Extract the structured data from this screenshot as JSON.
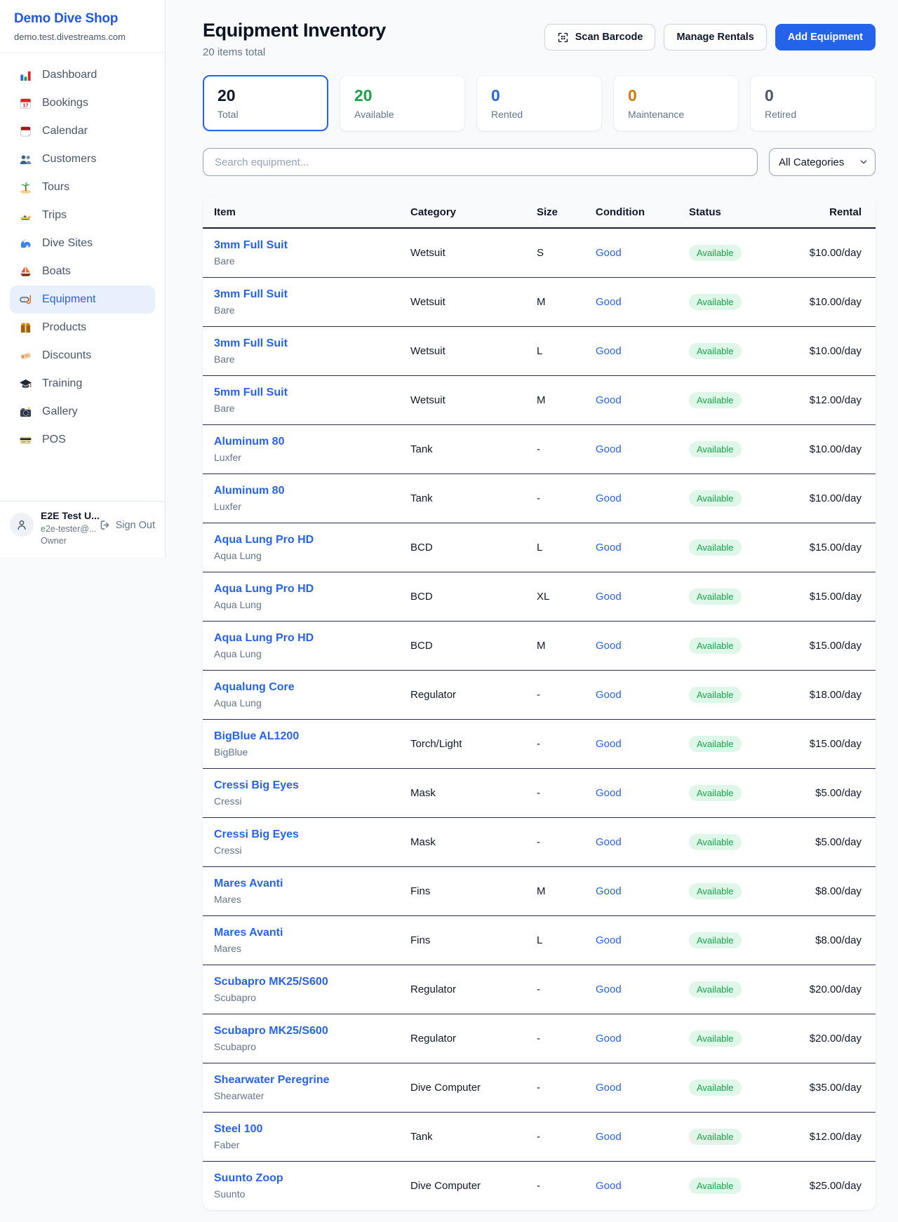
{
  "colors": {
    "accent_blue": "#2563eb",
    "brand_blue": "#2257e7",
    "available_green": "#16a34a",
    "maintenance_orange": "#d97706",
    "retired_gray": "#4b5563",
    "badge_bg": "#def7e8",
    "row_border": "#22304a"
  },
  "sidebar": {
    "brand": {
      "name": "Demo Dive Shop",
      "domain": "demo.test.divestreams.com"
    },
    "items": [
      {
        "label": "Dashboard",
        "icon": "bar-chart",
        "active": false
      },
      {
        "label": "Bookings",
        "icon": "calendar-date",
        "active": false
      },
      {
        "label": "Calendar",
        "icon": "calendar",
        "active": false
      },
      {
        "label": "Customers",
        "icon": "people",
        "active": false
      },
      {
        "label": "Tours",
        "icon": "palm-island",
        "active": false
      },
      {
        "label": "Trips",
        "icon": "speedboat",
        "active": false
      },
      {
        "label": "Dive Sites",
        "icon": "wave",
        "active": false
      },
      {
        "label": "Boats",
        "icon": "sailboat",
        "active": false
      },
      {
        "label": "Equipment",
        "icon": "dive-mask",
        "active": true
      },
      {
        "label": "Products",
        "icon": "package",
        "active": false
      },
      {
        "label": "Discounts",
        "icon": "tag",
        "active": false
      },
      {
        "label": "Training",
        "icon": "grad-cap",
        "active": false
      },
      {
        "label": "Gallery",
        "icon": "camera",
        "active": false
      },
      {
        "label": "POS",
        "icon": "credit-card",
        "active": false
      }
    ],
    "user": {
      "name": "E2E Test U...",
      "email": "e2e-tester@...",
      "role": "Owner",
      "sign_out_label": "Sign Out"
    }
  },
  "header": {
    "title": "Equipment Inventory",
    "subtitle": "20 items total",
    "buttons": {
      "scan": "Scan Barcode",
      "manage": "Manage Rentals",
      "add": "Add Equipment"
    }
  },
  "stats": [
    {
      "value": "20",
      "label": "Total",
      "color": "#0f172a",
      "selected": true
    },
    {
      "value": "20",
      "label": "Available",
      "color": "#16a34a",
      "selected": false
    },
    {
      "value": "0",
      "label": "Rented",
      "color": "#2563eb",
      "selected": false
    },
    {
      "value": "0",
      "label": "Maintenance",
      "color": "#d97706",
      "selected": false
    },
    {
      "value": "0",
      "label": "Retired",
      "color": "#4b5563",
      "selected": false
    }
  ],
  "filters": {
    "search_placeholder": "Search equipment...",
    "category_selected": "All Categories"
  },
  "table": {
    "columns": [
      "Item",
      "Category",
      "Size",
      "Condition",
      "Status",
      "Rental"
    ],
    "rows": [
      {
        "name": "3mm Full Suit",
        "brand": "Bare",
        "category": "Wetsuit",
        "size": "S",
        "condition": "Good",
        "status": "Available",
        "rental": "$10.00/day"
      },
      {
        "name": "3mm Full Suit",
        "brand": "Bare",
        "category": "Wetsuit",
        "size": "M",
        "condition": "Good",
        "status": "Available",
        "rental": "$10.00/day"
      },
      {
        "name": "3mm Full Suit",
        "brand": "Bare",
        "category": "Wetsuit",
        "size": "L",
        "condition": "Good",
        "status": "Available",
        "rental": "$10.00/day"
      },
      {
        "name": "5mm Full Suit",
        "brand": "Bare",
        "category": "Wetsuit",
        "size": "M",
        "condition": "Good",
        "status": "Available",
        "rental": "$12.00/day"
      },
      {
        "name": "Aluminum 80",
        "brand": "Luxfer",
        "category": "Tank",
        "size": "-",
        "condition": "Good",
        "status": "Available",
        "rental": "$10.00/day"
      },
      {
        "name": "Aluminum 80",
        "brand": "Luxfer",
        "category": "Tank",
        "size": "-",
        "condition": "Good",
        "status": "Available",
        "rental": "$10.00/day"
      },
      {
        "name": "Aqua Lung Pro HD",
        "brand": "Aqua Lung",
        "category": "BCD",
        "size": "L",
        "condition": "Good",
        "status": "Available",
        "rental": "$15.00/day"
      },
      {
        "name": "Aqua Lung Pro HD",
        "brand": "Aqua Lung",
        "category": "BCD",
        "size": "XL",
        "condition": "Good",
        "status": "Available",
        "rental": "$15.00/day"
      },
      {
        "name": "Aqua Lung Pro HD",
        "brand": "Aqua Lung",
        "category": "BCD",
        "size": "M",
        "condition": "Good",
        "status": "Available",
        "rental": "$15.00/day"
      },
      {
        "name": "Aqualung Core",
        "brand": "Aqua Lung",
        "category": "Regulator",
        "size": "-",
        "condition": "Good",
        "status": "Available",
        "rental": "$18.00/day"
      },
      {
        "name": "BigBlue AL1200",
        "brand": "BigBlue",
        "category": "Torch/Light",
        "size": "-",
        "condition": "Good",
        "status": "Available",
        "rental": "$15.00/day"
      },
      {
        "name": "Cressi Big Eyes",
        "brand": "Cressi",
        "category": "Mask",
        "size": "-",
        "condition": "Good",
        "status": "Available",
        "rental": "$5.00/day"
      },
      {
        "name": "Cressi Big Eyes",
        "brand": "Cressi",
        "category": "Mask",
        "size": "-",
        "condition": "Good",
        "status": "Available",
        "rental": "$5.00/day"
      },
      {
        "name": "Mares Avanti",
        "brand": "Mares",
        "category": "Fins",
        "size": "M",
        "condition": "Good",
        "status": "Available",
        "rental": "$8.00/day"
      },
      {
        "name": "Mares Avanti",
        "brand": "Mares",
        "category": "Fins",
        "size": "L",
        "condition": "Good",
        "status": "Available",
        "rental": "$8.00/day"
      },
      {
        "name": "Scubapro MK25/S600",
        "brand": "Scubapro",
        "category": "Regulator",
        "size": "-",
        "condition": "Good",
        "status": "Available",
        "rental": "$20.00/day"
      },
      {
        "name": "Scubapro MK25/S600",
        "brand": "Scubapro",
        "category": "Regulator",
        "size": "-",
        "condition": "Good",
        "status": "Available",
        "rental": "$20.00/day"
      },
      {
        "name": "Shearwater Peregrine",
        "brand": "Shearwater",
        "category": "Dive Computer",
        "size": "-",
        "condition": "Good",
        "status": "Available",
        "rental": "$35.00/day"
      },
      {
        "name": "Steel 100",
        "brand": "Faber",
        "category": "Tank",
        "size": "-",
        "condition": "Good",
        "status": "Available",
        "rental": "$12.00/day"
      },
      {
        "name": "Suunto Zoop",
        "brand": "Suunto",
        "category": "Dive Computer",
        "size": "-",
        "condition": "Good",
        "status": "Available",
        "rental": "$25.00/day"
      }
    ]
  }
}
